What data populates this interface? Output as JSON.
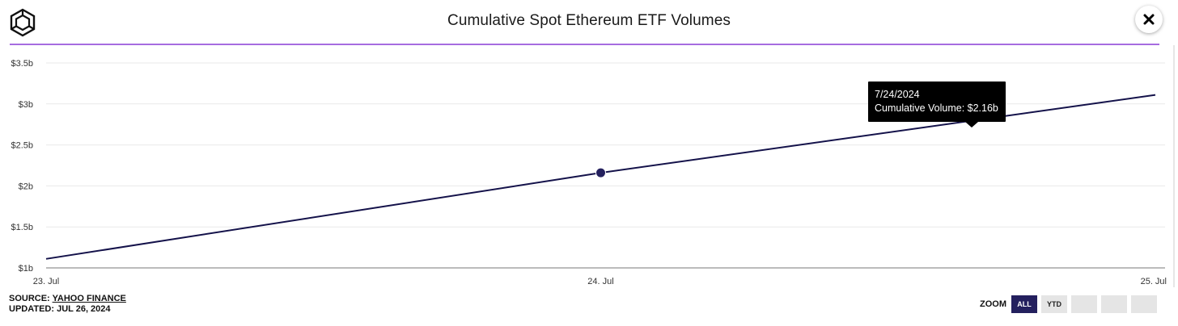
{
  "header": {
    "title": "Cumulative Spot Ethereum ETF Volumes",
    "accent_color": "#a66ce0"
  },
  "chart_data": {
    "type": "line",
    "title": "Cumulative Spot Ethereum ETF Volumes",
    "xlabel": "",
    "ylabel": "",
    "x": [
      "2024-07-23",
      "2024-07-24",
      "2024-07-25"
    ],
    "series": [
      {
        "values": [
          1.11,
          2.16,
          3.11
        ],
        "color": "#14124a"
      }
    ],
    "x_tick_labels": [
      "23. Jul",
      "24. Jul",
      "25. Jul"
    ],
    "y_ticks": [
      1,
      1.5,
      2,
      2.5,
      3,
      3.5
    ],
    "y_tick_labels": [
      "$1b",
      "$1.5b",
      "$2b",
      "$2.5b",
      "$3b",
      "$3.5b"
    ],
    "ylim": [
      1,
      3.5
    ],
    "grid": true,
    "legend": "none",
    "tooltip": {
      "date": "7/24/2024",
      "text": "Cumulative Volume: $2.16b"
    }
  },
  "footer": {
    "source_label": "SOURCE:",
    "source_name": "YAHOO FINANCE",
    "updated": "UPDATED: JUL 26, 2024"
  },
  "zoom": {
    "label": "ZOOM",
    "buttons": [
      "ALL",
      "YTD",
      "",
      "",
      ""
    ],
    "active": "ALL",
    "active_color": "#24205e"
  }
}
